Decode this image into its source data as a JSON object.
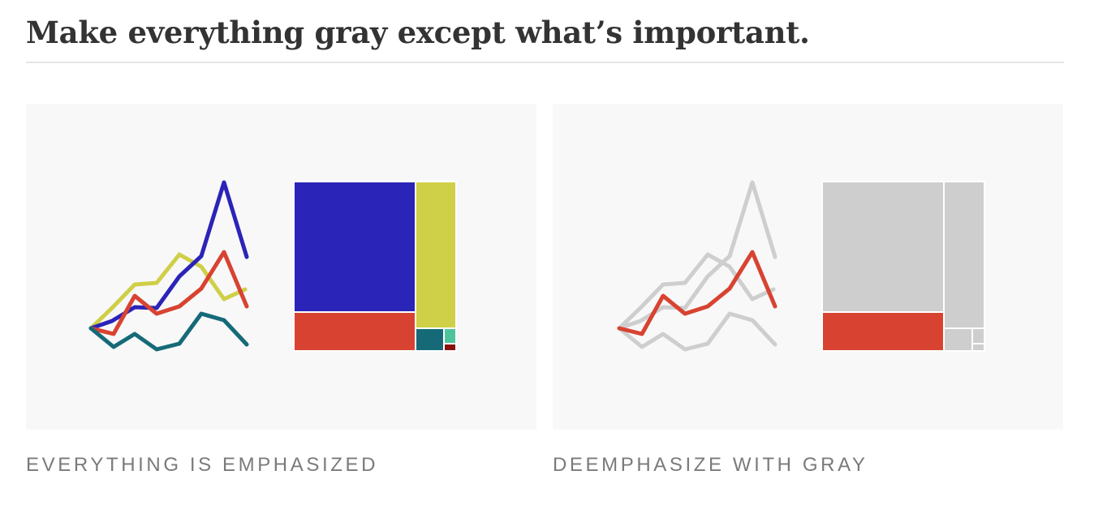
{
  "header": {
    "title": "Make everything gray except what’s important."
  },
  "panels": [
    {
      "caption": "EVERYTHING IS EMPHASIZED"
    },
    {
      "caption": "DEEMPHASIZE WITH GRAY"
    }
  ]
}
